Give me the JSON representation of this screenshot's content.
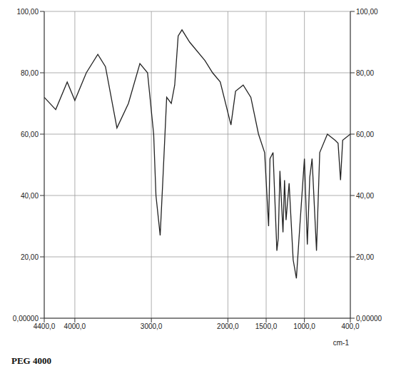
{
  "chart_data": {
    "type": "line",
    "title": "PEG 4000",
    "x_label": "cm-1",
    "x": [
      4400,
      4250,
      4100,
      4000,
      3850,
      3700,
      3600,
      3450,
      3300,
      3150,
      3050,
      2970,
      2940,
      2885,
      2850,
      2800,
      2740,
      2695,
      2650,
      2600,
      2500,
      2300,
      2200,
      2100,
      1960,
      1900,
      1800,
      1700,
      1600,
      1520,
      1468,
      1450,
      1410,
      1360,
      1342,
      1320,
      1280,
      1260,
      1240,
      1200,
      1147,
      1105,
      1060,
      1000,
      962,
      930,
      900,
      842,
      800,
      700,
      600,
      560,
      528,
      500,
      400
    ],
    "values": [
      72,
      68,
      77,
      71,
      80,
      86,
      82,
      62,
      70,
      83,
      80,
      60,
      40,
      27,
      45,
      72,
      70,
      76,
      92,
      94,
      90,
      84,
      80,
      77,
      63,
      74,
      76,
      72,
      60,
      54,
      30,
      52,
      54,
      22,
      26,
      48,
      28,
      45,
      32,
      44,
      19,
      13,
      30,
      52,
      24,
      46,
      52,
      22,
      54,
      60,
      58,
      57,
      45,
      58,
      60
    ],
    "color": "#222222",
    "xlim": [
      4400,
      400
    ],
    "xticks": [
      {
        "value": 4400,
        "label": "4400,0"
      },
      {
        "value": 4000,
        "label": "4000,0"
      },
      {
        "value": 3000,
        "label": "3000,0"
      },
      {
        "value": 2000,
        "label": "2000,0"
      },
      {
        "value": 1500,
        "label": "1500,0"
      },
      {
        "value": 1000,
        "label": "1000,0"
      },
      {
        "value": 400,
        "label": "400,0"
      }
    ],
    "ylim": [
      0,
      100
    ],
    "yticks": [
      {
        "value": 0,
        "label": "0,00000"
      },
      {
        "value": 20,
        "label": "20,00"
      },
      {
        "value": 40,
        "label": "40,00"
      },
      {
        "value": 60,
        "label": "60,00"
      },
      {
        "value": 80,
        "label": "80,00"
      },
      {
        "value": 100,
        "label": "100,00"
      }
    ],
    "grid": true
  }
}
